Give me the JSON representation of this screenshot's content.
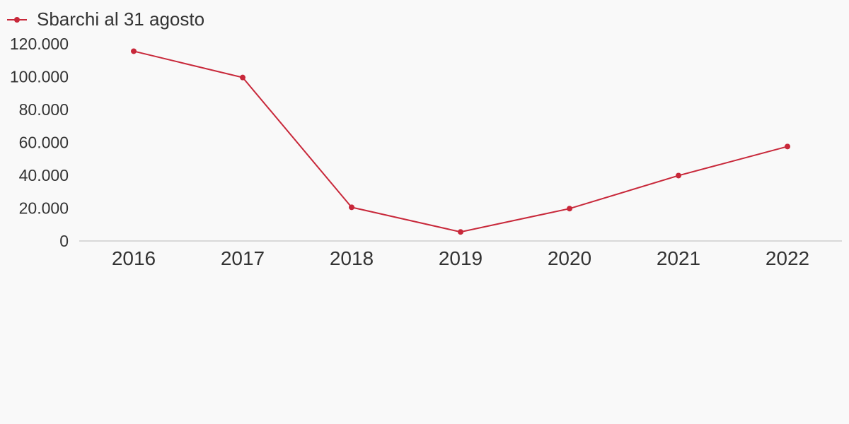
{
  "chart_data": {
    "type": "line",
    "title": "",
    "xlabel": "",
    "ylabel": "",
    "x": [
      "2016",
      "2017",
      "2018",
      "2019",
      "2020",
      "2021",
      "2022"
    ],
    "series": [
      {
        "name": "Sbarchi al 31 agosto",
        "values": [
          115500,
          99500,
          20500,
          5500,
          19700,
          39800,
          57500
        ],
        "color": "#c8283a"
      }
    ],
    "ylim": [
      0,
      120000
    ],
    "y_ticks": [
      {
        "value": 0,
        "label": "0"
      },
      {
        "value": 20000,
        "label": "20.000"
      },
      {
        "value": 40000,
        "label": "40.000"
      },
      {
        "value": 60000,
        "label": "60.000"
      },
      {
        "value": 80000,
        "label": "80.000"
      },
      {
        "value": 100000,
        "label": "100.000"
      },
      {
        "value": 120000,
        "label": "120.000"
      }
    ],
    "grid": false,
    "legend": "top-left",
    "axis_color": "#d9d9d9"
  }
}
